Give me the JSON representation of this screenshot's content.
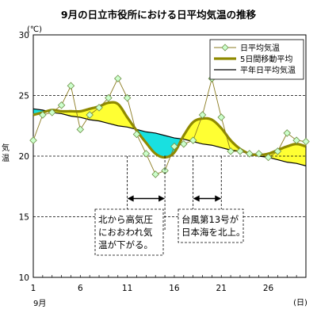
{
  "chart_data": {
    "type": "line",
    "title": "9月の日立市役所における日平均気温の推移",
    "y_unit": "(℃)",
    "ylabel": "気温",
    "xlabel_unit": "(日)",
    "month_label": "9月",
    "xlim": [
      1,
      30
    ],
    "ylim": [
      10,
      30
    ],
    "x_ticks": [
      1,
      6,
      11,
      16,
      21,
      26
    ],
    "y_ticks": [
      10,
      15,
      20,
      25,
      30
    ],
    "grid": "dashed horizontal",
    "legend_position": "top-right",
    "x": [
      1,
      2,
      3,
      4,
      5,
      6,
      7,
      8,
      9,
      10,
      11,
      12,
      13,
      14,
      15,
      16,
      17,
      18,
      19,
      20,
      21,
      22,
      23,
      24,
      25,
      26,
      27,
      28,
      29,
      30
    ],
    "series": [
      {
        "name": "日平均気温",
        "style": "markers",
        "color": "#8b7b20",
        "values": [
          21.3,
          23.4,
          23.6,
          24.2,
          25.8,
          22.2,
          23.4,
          24.0,
          24.8,
          26.4,
          24.8,
          21.8,
          20.2,
          18.5,
          18.8,
          20.8,
          21.0,
          21.3,
          23.4,
          26.4,
          23.2,
          20.4,
          20.4,
          20.2,
          20.2,
          19.9,
          20.4,
          21.9,
          21.3,
          21.2
        ]
      },
      {
        "name": "5日間移動平均",
        "style": "thick",
        "color": "#8f8a00",
        "values": [
          23.4,
          23.6,
          23.8,
          23.7,
          23.7,
          23.7,
          23.9,
          24.1,
          24.4,
          24.3,
          23.2,
          22.1,
          21.1,
          20.2,
          19.9,
          20.3,
          21.7,
          22.8,
          23.1,
          23.0,
          22.3,
          21.3,
          20.6,
          20.2,
          20.1,
          20.2,
          20.5,
          20.8,
          21.0,
          20.8
        ]
      },
      {
        "name": "平年日平均気温",
        "style": "line",
        "color": "#000000",
        "values": [
          23.9,
          23.8,
          23.6,
          23.5,
          23.3,
          23.2,
          23.0,
          22.9,
          22.7,
          22.5,
          22.4,
          22.2,
          22.0,
          21.9,
          21.7,
          21.5,
          21.4,
          21.2,
          21.0,
          20.9,
          20.7,
          20.5,
          20.4,
          20.2,
          20.0,
          19.9,
          19.7,
          19.5,
          19.4,
          19.2
        ]
      }
    ],
    "fill_colors": {
      "above_normal": "#ffff33",
      "below_normal": "#19e0e0"
    },
    "annotations": [
      {
        "text_lines": [
          "北から高気圧",
          "におおわれ気",
          "温が下がる。"
        ],
        "day_from": 11,
        "day_to": 15
      },
      {
        "text_lines": [
          "台風第13号が",
          "日本海を北上。"
        ],
        "day_from": 18,
        "day_to": 21
      }
    ]
  }
}
